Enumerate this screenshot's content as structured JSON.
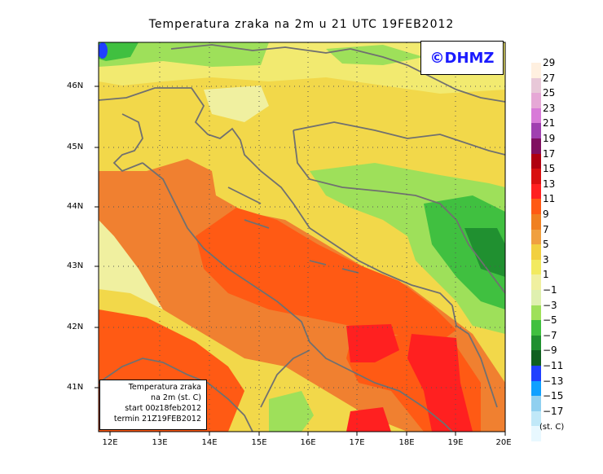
{
  "title": "Temperatura zraka na 2m u 21 UTC 19FEB2012",
  "copyright": "©DHMZ",
  "info": {
    "line1": "Temperatura zraka",
    "line2": "na 2m (st. C)",
    "line3": "start 00z18feb2012",
    "line4": "termin 21Z19FEB2012"
  },
  "lat_labels": [
    "46N",
    "45N",
    "44N",
    "43N",
    "42N",
    "41N"
  ],
  "lon_labels": [
    "12E",
    "13E",
    "14E",
    "15E",
    "16E",
    "17E",
    "18E",
    "19E",
    "20E"
  ],
  "legend": {
    "unit": "(st. C)",
    "labels": [
      "29",
      "27",
      "25",
      "23",
      "21",
      "19",
      "17",
      "15",
      "13",
      "11",
      "9",
      "7",
      "5",
      "3",
      "1",
      "−1",
      "−3",
      "−5",
      "−7",
      "−9",
      "−11",
      "−13",
      "−15",
      "−17"
    ],
    "colors": [
      "#fff0e0",
      "#e8c8d8",
      "#e6a8d6",
      "#d87ad8",
      "#a040b0",
      "#801060",
      "#b00010",
      "#d81010",
      "#ff2020",
      "#ff5a14",
      "#f08020",
      "#f0a040",
      "#f2d040",
      "#f2ea60",
      "#f0f0a0",
      "#dff0b0",
      "#9ee05a",
      "#40c040",
      "#209030",
      "#106020",
      "#2040ff",
      "#10a0ff",
      "#90d0f0",
      "#c0e8f8",
      "#e8f8ff"
    ]
  }
}
